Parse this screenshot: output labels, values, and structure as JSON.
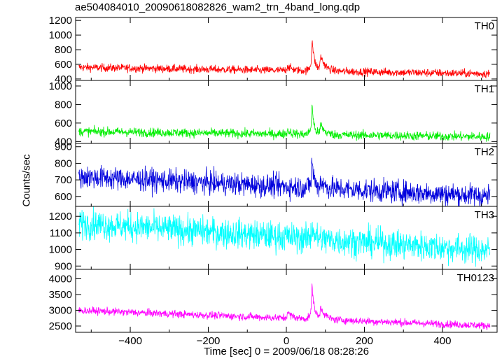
{
  "chart_data": {
    "title": "ae504084010_20090618082826_wam2_trn_4band_long.qdp",
    "ylabel": "Counts/sec",
    "xlabel": "Time [sec] 0 = 2009/06/18 08:28:26",
    "type": "line",
    "x_range": [
      -540,
      540
    ],
    "x_ticks": [
      -400,
      -200,
      0,
      200,
      400
    ],
    "panels": [
      {
        "name": "TH0",
        "color": "#ff0000",
        "ylim": [
          380,
          1240
        ],
        "yticks": [
          400,
          600,
          800,
          1000,
          1200
        ],
        "baseline_start": 560,
        "baseline_end": 470,
        "noise": 28,
        "features": [
          {
            "t": 0,
            "amp": 80,
            "width": 12
          },
          {
            "t": 63,
            "amp": 720,
            "width": 6
          },
          {
            "t": 85,
            "amp": 260,
            "width": 12
          }
        ]
      },
      {
        "name": "TH1",
        "color": "#00ee00",
        "ylim": [
          380,
          1060
        ],
        "yticks": [
          400,
          600,
          800,
          1000
        ],
        "baseline_start": 510,
        "baseline_end": 450,
        "noise": 25,
        "features": [
          {
            "t": 0,
            "amp": 60,
            "width": 10
          },
          {
            "t": 63,
            "amp": 560,
            "width": 5
          },
          {
            "t": 85,
            "amp": 150,
            "width": 10
          }
        ]
      },
      {
        "name": "TH2",
        "color": "#0000dd",
        "ylim": [
          540,
          920
        ],
        "yticks": [
          600,
          700,
          800,
          900
        ],
        "baseline_start": 720,
        "baseline_end": 600,
        "noise": 35,
        "features": [
          {
            "t": 63,
            "amp": 300,
            "width": 5
          },
          {
            "t": 85,
            "amp": 60,
            "width": 10
          }
        ]
      },
      {
        "name": "TH3",
        "color": "#00ffff",
        "ylim": [
          880,
          1260
        ],
        "yticks": [
          900,
          1000,
          1100,
          1200
        ],
        "baseline_start": 1160,
        "baseline_end": 990,
        "noise": 45,
        "features": [
          {
            "t": 63,
            "amp": 140,
            "width": 6
          }
        ]
      },
      {
        "name": "TH0123",
        "color": "#ff00ff",
        "ylim": [
          2300,
          4300
        ],
        "yticks": [
          2500,
          3000,
          3500,
          4000
        ],
        "baseline_start": 3000,
        "baseline_end": 2500,
        "noise": 60,
        "features": [
          {
            "t": 0,
            "amp": 250,
            "width": 12
          },
          {
            "t": 63,
            "amp": 1750,
            "width": 6
          },
          {
            "t": 85,
            "amp": 500,
            "width": 12
          }
        ]
      }
    ]
  }
}
